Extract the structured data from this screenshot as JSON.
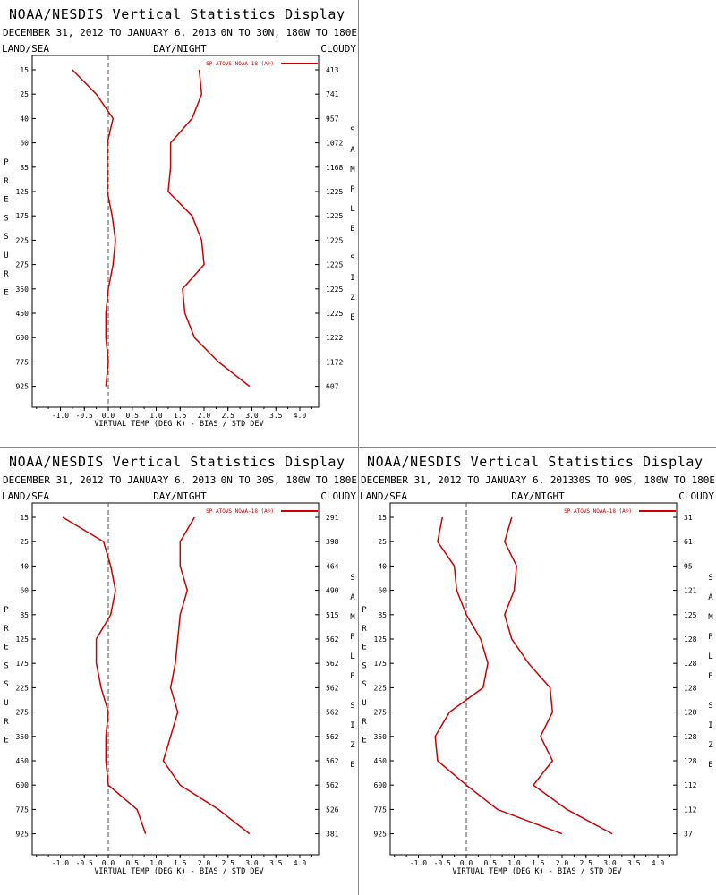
{
  "colors": {
    "series": "#cc0000",
    "axis": "#000000",
    "zero_line": "#555555"
  },
  "chart_data": [
    {
      "type": "line",
      "title": "NOAA/NESDIS Vertical Statistics Display",
      "subtitle": "DECEMBER 31, 2012 TO JANUARY 6, 2013",
      "region": "0N TO 30N, 180W TO 180E",
      "filters": {
        "left": "LAND/SEA",
        "center": "DAY/NIGHT",
        "right": "CLOUDY"
      },
      "legend": "SP ATOVS NOAA-18 (A®)",
      "xlabel": "VIRTUAL TEMP (DEG K) - BIAS / STD DEV",
      "ylabel": "PRESSURE",
      "y2label": "SAMPLE SIZE",
      "x_ticks": [
        "-1.0",
        "-0.5",
        "0.0",
        "0.5",
        "1.0",
        "1.5",
        "2.0",
        "2.5",
        "3.0",
        "3.5",
        "4.0"
      ],
      "xlim": [
        -1.5,
        4.5
      ],
      "pressure_levels": [
        "15",
        "25",
        "40",
        "60",
        "85",
        "125",
        "175",
        "225",
        "275",
        "350",
        "450",
        "600",
        "775",
        "925"
      ],
      "sample_size": [
        "413",
        "741",
        "957",
        "1072",
        "1168",
        "1225",
        "1225",
        "1225",
        "1225",
        "1225",
        "1225",
        "1222",
        "1172",
        "607"
      ],
      "series": [
        {
          "name": "BIAS",
          "values": [
            -0.75,
            -0.25,
            0.1,
            -0.02,
            -0.02,
            -0.02,
            0.08,
            0.15,
            0.1,
            0.0,
            -0.05,
            -0.05,
            0.0,
            -0.05
          ]
        },
        {
          "name": "STD DEV",
          "values": [
            1.9,
            1.95,
            1.75,
            1.3,
            1.3,
            1.25,
            1.75,
            1.95,
            2.0,
            1.55,
            1.6,
            1.8,
            2.3,
            2.95
          ]
        }
      ]
    },
    {
      "type": "line",
      "title": "NOAA/NESDIS Vertical Statistics Display",
      "subtitle": "DECEMBER 31, 2012 TO JANUARY 6, 2013",
      "region": "0N TO 30S, 180W TO 180E",
      "filters": {
        "left": "LAND/SEA",
        "center": "DAY/NIGHT",
        "right": "CLOUDY"
      },
      "legend": "SP ATOVS NOAA-18 (A®)",
      "xlabel": "VIRTUAL TEMP (DEG K) - BIAS / STD DEV",
      "ylabel": "PRESSURE",
      "y2label": "SAMPLE SIZE",
      "x_ticks": [
        "-1.0",
        "-0.5",
        "0.0",
        "0.5",
        "1.0",
        "1.5",
        "2.0",
        "2.5",
        "3.0",
        "3.5",
        "4.0"
      ],
      "xlim": [
        -1.5,
        4.5
      ],
      "pressure_levels": [
        "15",
        "25",
        "40",
        "60",
        "85",
        "125",
        "175",
        "225",
        "275",
        "350",
        "450",
        "600",
        "775",
        "925"
      ],
      "sample_size": [
        "291",
        "398",
        "464",
        "490",
        "515",
        "562",
        "562",
        "562",
        "562",
        "562",
        "562",
        "562",
        "526",
        "381"
      ],
      "series": [
        {
          "name": "BIAS",
          "values": [
            -0.95,
            -0.1,
            0.05,
            0.15,
            0.05,
            -0.25,
            -0.25,
            -0.15,
            0.0,
            -0.05,
            -0.05,
            0.0,
            0.6,
            0.78
          ]
        },
        {
          "name": "STD DEV",
          "values": [
            1.8,
            1.5,
            1.5,
            1.65,
            1.5,
            1.45,
            1.4,
            1.3,
            1.45,
            1.3,
            1.15,
            1.5,
            2.3,
            2.95
          ]
        }
      ]
    },
    {
      "type": "line",
      "title": "NOAA/NESDIS Vertical Statistics Display",
      "subtitle": "DECEMBER 31, 2012 TO JANUARY 6, 2013",
      "region": "30S TO 90S, 180W TO 180E",
      "filters": {
        "left": "LAND/SEA",
        "center": "DAY/NIGHT",
        "right": "CLOUDY"
      },
      "legend": "SP ATOVS NOAA-18 (A®)",
      "xlabel": "VIRTUAL TEMP (DEG K) - BIAS / STD DEV",
      "ylabel": "PRESSURE",
      "y2label": "SAMPLE SIZE",
      "x_ticks": [
        "-1.0",
        "-0.5",
        "0.0",
        "0.5",
        "1.0",
        "1.5",
        "2.0",
        "2.5",
        "3.0",
        "3.5",
        "4.0"
      ],
      "xlim": [
        -1.5,
        4.5
      ],
      "pressure_levels": [
        "15",
        "25",
        "40",
        "60",
        "85",
        "125",
        "175",
        "225",
        "275",
        "350",
        "450",
        "600",
        "775",
        "925"
      ],
      "sample_size": [
        "31",
        "61",
        "95",
        "121",
        "125",
        "128",
        "128",
        "128",
        "128",
        "128",
        "128",
        "112",
        "112",
        "37"
      ],
      "series": [
        {
          "name": "BIAS",
          "values": [
            -0.5,
            -0.6,
            -0.25,
            -0.2,
            0.0,
            0.3,
            0.45,
            0.35,
            -0.35,
            -0.65,
            -0.6,
            0.0,
            0.65,
            2.0
          ]
        },
        {
          "name": "STD DEV",
          "values": [
            0.95,
            0.8,
            1.05,
            1.0,
            0.8,
            0.95,
            1.3,
            1.75,
            1.8,
            1.55,
            1.8,
            1.4,
            2.1,
            3.05
          ]
        }
      ]
    }
  ]
}
